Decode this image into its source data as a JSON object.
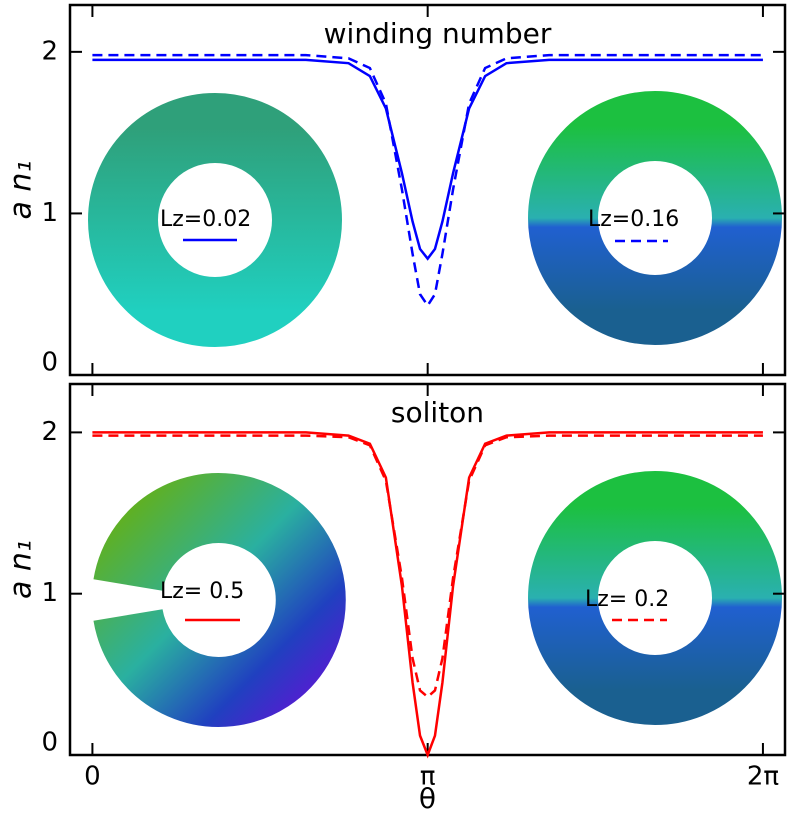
{
  "chart_data": [
    {
      "type": "line",
      "title": "winding number",
      "ylabel": "a n₁",
      "x": [
        0,
        2.0,
        2.4,
        2.6,
        2.75,
        2.9,
        3.0,
        3.07,
        3.1416,
        3.21,
        3.28,
        3.38,
        3.53,
        3.68,
        3.88,
        4.28,
        6.2832
      ],
      "series": [
        {
          "name": "Lz=0.02",
          "color": "#0000ff",
          "dashed": false,
          "values": [
            1.95,
            1.95,
            1.93,
            1.85,
            1.65,
            1.25,
            0.95,
            0.78,
            0.72,
            0.78,
            0.95,
            1.25,
            1.65,
            1.85,
            1.93,
            1.95,
            1.95
          ]
        },
        {
          "name": "Lz=0.16",
          "color": "#0000ff",
          "dashed": true,
          "values": [
            1.98,
            1.98,
            1.96,
            1.9,
            1.68,
            1.15,
            0.75,
            0.5,
            0.43,
            0.5,
            0.75,
            1.15,
            1.68,
            1.9,
            1.96,
            1.98,
            1.98
          ]
        }
      ],
      "xlim": [
        -0.21,
        6.49
      ],
      "ylim": [
        0,
        2.29
      ],
      "yticks": [
        0,
        1,
        2
      ]
    },
    {
      "type": "line",
      "title": "soliton",
      "ylabel": "a n₁",
      "xlabel": "θ",
      "x": [
        0,
        2.0,
        2.4,
        2.6,
        2.75,
        2.9,
        3.0,
        3.07,
        3.1416,
        3.21,
        3.28,
        3.38,
        3.53,
        3.68,
        3.88,
        4.28,
        6.2832
      ],
      "series": [
        {
          "name": "Lz= 0.5",
          "color": "#ff0000",
          "dashed": false,
          "values": [
            2.0,
            2.0,
            1.98,
            1.93,
            1.72,
            1.05,
            0.45,
            0.12,
            0,
            0.12,
            0.45,
            1.05,
            1.72,
            1.93,
            1.98,
            2.0,
            2.0
          ]
        },
        {
          "name": "Lz= 0.2",
          "color": "#ff0000",
          "dashed": true,
          "values": [
            1.98,
            1.98,
            1.97,
            1.92,
            1.7,
            1.1,
            0.6,
            0.4,
            0.36,
            0.4,
            0.6,
            1.1,
            1.7,
            1.92,
            1.97,
            1.98,
            1.98
          ]
        }
      ],
      "xlim": [
        -0.21,
        6.49
      ],
      "ylim": [
        0,
        2.3
      ],
      "yticks": [
        0,
        1,
        2
      ],
      "xticks": [
        0,
        {
          "value": 3.1416,
          "label": "π"
        },
        {
          "value": 6.2832,
          "label": "2π"
        }
      ]
    }
  ]
}
